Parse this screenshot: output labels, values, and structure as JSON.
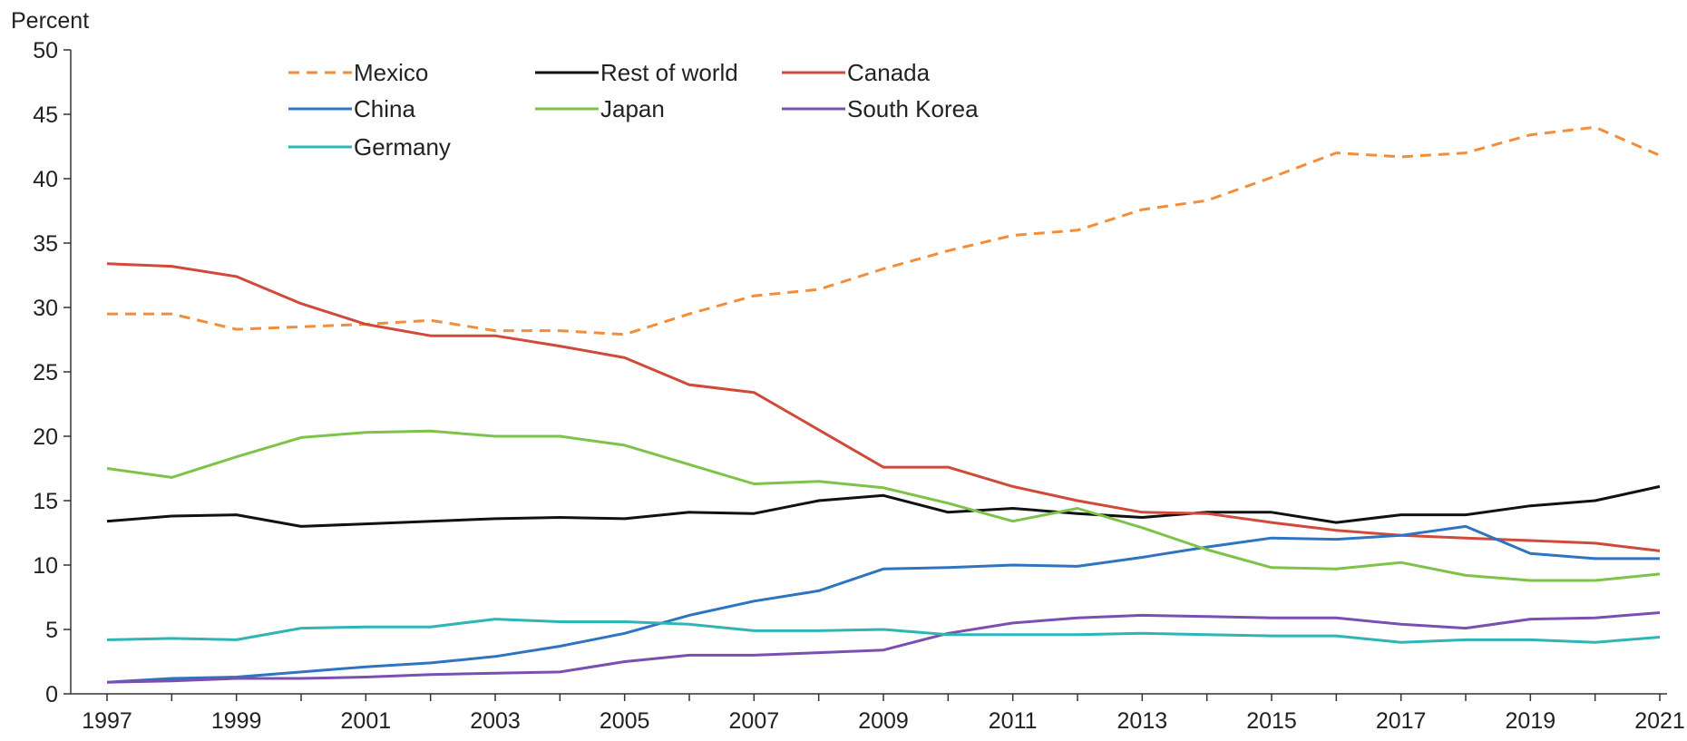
{
  "chart_data": {
    "type": "line",
    "ylabel": "Percent",
    "ylim": [
      0,
      50
    ],
    "y_ticks": [
      0,
      5,
      10,
      15,
      20,
      25,
      30,
      35,
      40,
      45,
      50
    ],
    "x_range": [
      1997,
      2021
    ],
    "x_ticks": [
      1997,
      1999,
      2001,
      2003,
      2005,
      2007,
      2009,
      2011,
      2013,
      2015,
      2017,
      2019,
      2021
    ],
    "x": [
      1997,
      1998,
      1999,
      2000,
      2001,
      2002,
      2003,
      2004,
      2005,
      2006,
      2007,
      2008,
      2009,
      2010,
      2011,
      2012,
      2013,
      2014,
      2015,
      2016,
      2017,
      2018,
      2019,
      2020,
      2021
    ],
    "legend_position": "top-left",
    "grid": false,
    "series": [
      {
        "name": "Mexico",
        "color": "#f28e3b",
        "dashed": true,
        "values": [
          29.5,
          29.5,
          28.3,
          28.5,
          28.7,
          29.0,
          28.2,
          28.2,
          27.9,
          29.5,
          30.9,
          31.4,
          33.0,
          34.4,
          35.6,
          36.0,
          37.6,
          38.3,
          40.1,
          42.0,
          41.7,
          42.0,
          43.4,
          44.0,
          41.8
        ]
      },
      {
        "name": "Rest of world",
        "color": "#111111",
        "dashed": false,
        "values": [
          13.4,
          13.8,
          13.9,
          13.0,
          13.2,
          13.4,
          13.6,
          13.7,
          13.6,
          14.1,
          14.0,
          15.0,
          15.4,
          14.1,
          14.4,
          14.0,
          13.7,
          14.1,
          14.1,
          13.3,
          13.9,
          13.9,
          14.6,
          15.0,
          16.1
        ]
      },
      {
        "name": "Canada",
        "color": "#d04a3a",
        "dashed": false,
        "values": [
          33.4,
          33.2,
          32.4,
          30.3,
          28.7,
          27.8,
          27.8,
          27.0,
          26.1,
          24.0,
          23.4,
          20.5,
          17.6,
          17.6,
          16.1,
          15.0,
          14.1,
          14.0,
          13.3,
          12.7,
          12.3,
          12.1,
          11.9,
          11.7,
          11.1
        ]
      },
      {
        "name": "China",
        "color": "#2e74c0",
        "dashed": false,
        "values": [
          0.9,
          1.2,
          1.3,
          1.7,
          2.1,
          2.4,
          2.9,
          3.7,
          4.7,
          6.1,
          7.2,
          8.0,
          9.7,
          9.8,
          10.0,
          9.9,
          10.6,
          11.4,
          12.1,
          12.0,
          12.3,
          13.0,
          10.9,
          10.5,
          10.5
        ]
      },
      {
        "name": "Japan",
        "color": "#7fc24a",
        "dashed": false,
        "values": [
          17.5,
          16.8,
          18.4,
          19.9,
          20.3,
          20.4,
          20.0,
          20.0,
          19.3,
          17.8,
          16.3,
          16.5,
          16.0,
          14.8,
          13.4,
          14.4,
          12.9,
          11.2,
          9.8,
          9.7,
          10.2,
          9.2,
          8.8,
          8.8,
          9.3
        ]
      },
      {
        "name": "South Korea",
        "color": "#7a4fb0",
        "dashed": false,
        "values": [
          0.9,
          1.0,
          1.2,
          1.2,
          1.3,
          1.5,
          1.6,
          1.7,
          2.5,
          3.0,
          3.0,
          3.2,
          3.4,
          4.7,
          5.5,
          5.9,
          6.1,
          6.0,
          5.9,
          5.9,
          5.4,
          5.1,
          5.8,
          5.9,
          6.3
        ]
      },
      {
        "name": "Germany",
        "color": "#2fb5b5",
        "dashed": false,
        "values": [
          4.2,
          4.3,
          4.2,
          5.1,
          5.2,
          5.2,
          5.8,
          5.6,
          5.6,
          5.4,
          4.9,
          4.9,
          5.0,
          4.6,
          4.6,
          4.6,
          4.7,
          4.6,
          4.5,
          4.5,
          4.0,
          4.2,
          4.2,
          4.0,
          4.4
        ]
      }
    ]
  }
}
